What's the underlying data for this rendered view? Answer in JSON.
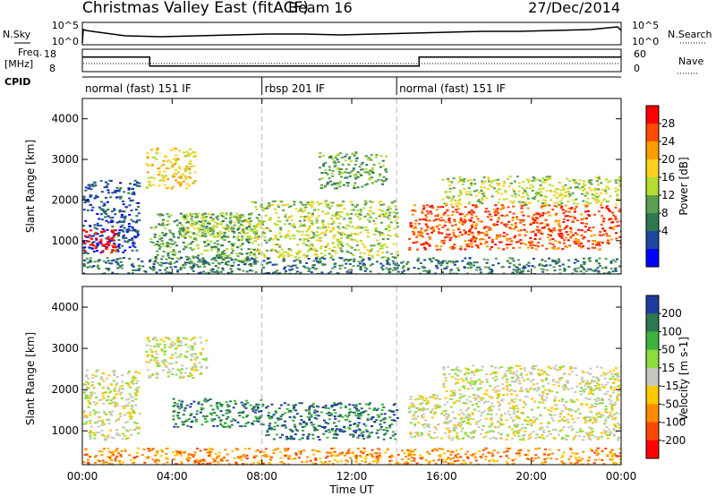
{
  "header": {
    "title": "Christmas Valley East (fitACF)",
    "beam": "Beam 16",
    "date": "27/Dec/2014"
  },
  "status_panels": {
    "nsky_label": "N.Sky",
    "nsearch_label": "N.Search",
    "nsky_ticks": [
      "10^5",
      "10^0"
    ],
    "nsearch_ticks": [
      "10^5",
      "10^0"
    ],
    "freq_label": [
      "Freq.",
      "[MHz]"
    ],
    "freq_ticks": [
      "18",
      "8"
    ],
    "nave_label": "Nave",
    "nave_ticks": [
      "60",
      "0"
    ],
    "cpid_label": "CPID",
    "cpid_segments": [
      {
        "label": "normal (fast) 151 IF",
        "start_h": 0,
        "end_h": 8
      },
      {
        "label": "rbsp 201 IF",
        "start_h": 8,
        "end_h": 14
      },
      {
        "label": "normal (fast) 151 IF",
        "start_h": 14,
        "end_h": 24
      }
    ],
    "freq_steps": [
      {
        "start_h": 0,
        "end_h": 3,
        "mhz": 14.5
      },
      {
        "start_h": 3,
        "end_h": 15,
        "mhz": 10.5
      },
      {
        "start_h": 15,
        "end_h": 24,
        "mhz": 14.5
      }
    ]
  },
  "chart_data": [
    {
      "type": "heatmap",
      "name": "power",
      "ylabel": "Slant Range [km]",
      "xlabel": "Time UT",
      "ylim": [
        180,
        4500
      ],
      "xlim": [
        0,
        24
      ],
      "yticks": [
        1000,
        2000,
        3000,
        4000
      ],
      "xticks": [
        "00:00",
        "04:00",
        "08:00",
        "12:00",
        "16:00",
        "20:00",
        "00:00"
      ],
      "colorbar_label": "Power [dB]",
      "colorbar_ticks": [
        "28",
        "24",
        "20",
        "16",
        "12",
        "8",
        "4"
      ],
      "colorbar_colors": [
        "#ff0000",
        "#ff4a00",
        "#ff9c00",
        "#ffd21e",
        "#b4dc32",
        "#5aa050",
        "#2d7850",
        "#1e46a0",
        "#0000ff"
      ],
      "regions": [
        {
          "t0": 0.0,
          "t1": 2.5,
          "r0": 700,
          "r1": 2500,
          "level": 7
        },
        {
          "t0": 0.0,
          "t1": 1.5,
          "r0": 700,
          "r1": 1300,
          "level": 0
        },
        {
          "t0": 2.8,
          "t1": 5.0,
          "r0": 2300,
          "r1": 3300,
          "level": 3
        },
        {
          "t0": 3.0,
          "t1": 7.8,
          "r0": 400,
          "r1": 1700,
          "level": 5
        },
        {
          "t0": 4.5,
          "t1": 7.5,
          "r0": 1100,
          "r1": 1700,
          "level": 4
        },
        {
          "t0": 7.5,
          "t1": 14.0,
          "r0": 600,
          "r1": 2000,
          "level": 4
        },
        {
          "t0": 10.5,
          "t1": 13.5,
          "r0": 2300,
          "r1": 3200,
          "level": 5
        },
        {
          "t0": 14.5,
          "t1": 24.0,
          "r0": 800,
          "r1": 1900,
          "level": 1
        },
        {
          "t0": 16.0,
          "t1": 24.0,
          "r0": 1900,
          "r1": 2600,
          "level": 4
        },
        {
          "t0": 0.0,
          "t1": 24.0,
          "r0": 180,
          "r1": 600,
          "level": 6
        }
      ]
    },
    {
      "type": "heatmap",
      "name": "velocity",
      "ylabel": "Slant Range [km]",
      "xlabel": "Time UT",
      "ylim": [
        180,
        4500
      ],
      "xlim": [
        0,
        24
      ],
      "yticks": [
        1000,
        2000,
        3000,
        4000
      ],
      "xticks": [
        "00:00",
        "04:00",
        "08:00",
        "12:00",
        "16:00",
        "20:00",
        "00:00"
      ],
      "colorbar_label": "Velocity [m s-1]",
      "colorbar_ticks": [
        "200",
        "100",
        "50",
        "15",
        "-15",
        "-50",
        "-100",
        "-200"
      ],
      "colorbar_colors": [
        "#1e3ca0",
        "#2d7850",
        "#3cb43c",
        "#8cdc3c",
        "#c8c8c0",
        "#ffc800",
        "#ff8c00",
        "#ff4600",
        "#ff0000"
      ],
      "regions": [
        {
          "t0": 0.0,
          "t1": 2.5,
          "r0": 800,
          "r1": 2500,
          "level": 4
        },
        {
          "t0": 2.8,
          "t1": 5.5,
          "r0": 2300,
          "r1": 3300,
          "level": 4
        },
        {
          "t0": 4.0,
          "t1": 8.0,
          "r0": 1100,
          "r1": 1800,
          "level": 1
        },
        {
          "t0": 8.0,
          "t1": 14.0,
          "r0": 800,
          "r1": 1700,
          "level": 1
        },
        {
          "t0": 14.5,
          "t1": 24.0,
          "r0": 800,
          "r1": 1900,
          "level": 4
        },
        {
          "t0": 16.0,
          "t1": 24.0,
          "r0": 1900,
          "r1": 2600,
          "level": 4
        },
        {
          "t0": 0.0,
          "t1": 24.0,
          "r0": 180,
          "r1": 600,
          "level": 6
        }
      ]
    }
  ]
}
